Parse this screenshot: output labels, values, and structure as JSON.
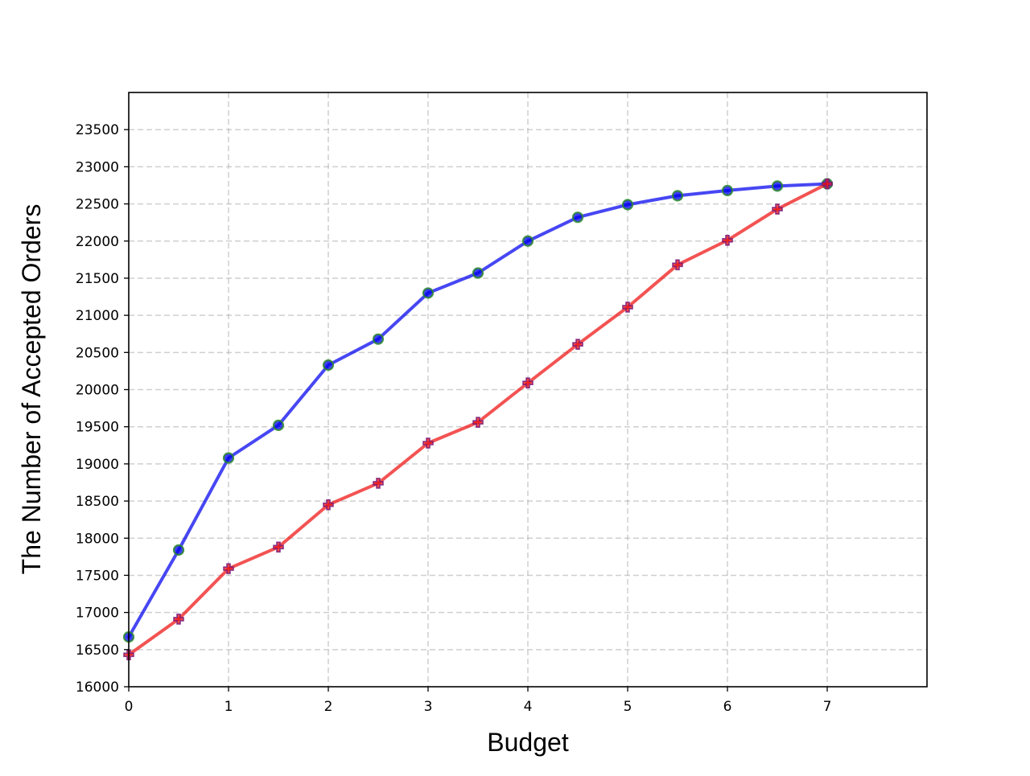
{
  "chart_data": {
    "type": "line",
    "title": "",
    "xlabel": "Budget",
    "ylabel": "The Number of Accepted Orders",
    "xlim": [
      0,
      8
    ],
    "ylim": [
      16000,
      24000
    ],
    "xticks": [
      0,
      1,
      2,
      3,
      4,
      5,
      6,
      7
    ],
    "yticks": [
      16000,
      16500,
      17000,
      17500,
      18000,
      18500,
      19000,
      19500,
      20000,
      20500,
      21000,
      21500,
      22000,
      22500,
      23000,
      23500
    ],
    "grid": true,
    "legend": "none",
    "x": [
      0,
      0.5,
      1,
      1.5,
      2,
      2.5,
      3,
      3.5,
      4,
      4.5,
      5,
      5.5,
      6,
      6.5,
      7
    ],
    "series": [
      {
        "values": [
          16670,
          17840,
          19080,
          19520,
          20330,
          20680,
          21300,
          21570,
          22000,
          22320,
          22490,
          22610,
          22680,
          22740,
          22770
        ],
        "color": "#0000ee",
        "marker": "circle",
        "marker_edge": "#2e8b2e"
      },
      {
        "values": [
          16430,
          16910,
          17590,
          17880,
          18450,
          18740,
          19280,
          19560,
          20090,
          20610,
          21110,
          21680,
          22010,
          22430,
          22770
        ],
        "color": "#ee1111",
        "marker": "plus",
        "marker_edge": "#7a1a7a"
      }
    ]
  }
}
